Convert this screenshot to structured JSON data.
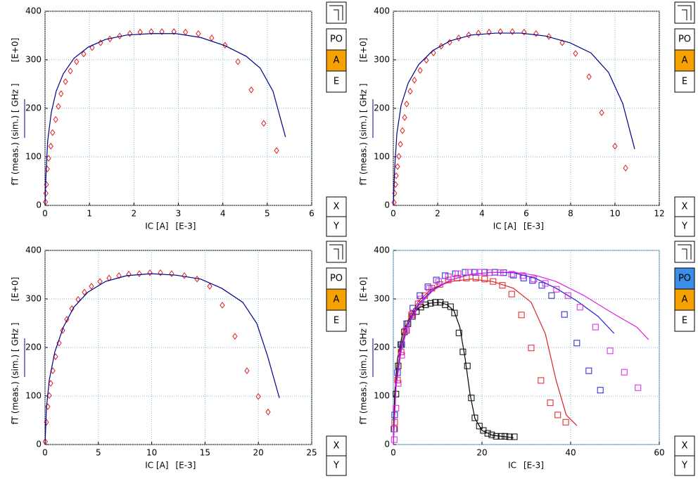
{
  "chart_data": [
    {
      "type": "scatter",
      "y_label": "fT (meas.)  (sim.) [ GHz ]",
      "y_scale_label": "[E+0]",
      "x_label": "IC [A]",
      "x_scale_label": "[E-3]",
      "xlim": [
        0,
        6
      ],
      "xticks": [
        0,
        1,
        2,
        3,
        4,
        5,
        6
      ],
      "ylim": [
        0,
        400
      ],
      "yticks": [
        0,
        100,
        200,
        300,
        400
      ],
      "grid": true,
      "series": [
        {
          "kind": "markers",
          "marker": "diamond",
          "color": "#e02020",
          "x": [
            0.01,
            0.02,
            0.03,
            0.05,
            0.08,
            0.13,
            0.17,
            0.24,
            0.3,
            0.36,
            0.46,
            0.57,
            0.71,
            0.87,
            1.06,
            1.25,
            1.46,
            1.68,
            1.91,
            2.14,
            2.39,
            2.63,
            2.9,
            3.16,
            3.45,
            3.75,
            4.05,
            4.34,
            4.64,
            4.92,
            5.21
          ],
          "values": [
            7,
            25,
            43,
            75,
            97,
            122,
            150,
            177,
            204,
            230,
            255,
            277,
            296,
            312,
            325,
            335,
            343,
            349,
            354,
            357,
            358,
            358,
            358,
            357,
            354,
            345,
            330,
            296,
            238,
            169,
            113
          ]
        },
        {
          "kind": "line",
          "color": "#00008b",
          "x": [
            0,
            0.02,
            0.06,
            0.14,
            0.25,
            0.41,
            0.65,
            0.97,
            1.36,
            1.84,
            2.39,
            2.94,
            3.5,
            4.05,
            4.53,
            4.84,
            5.13,
            5.41
          ],
          "values": [
            0,
            60,
            133,
            191,
            235,
            271,
            303,
            326,
            342,
            351,
            354,
            354,
            346,
            329,
            307,
            283,
            235,
            141
          ]
        }
      ]
    },
    {
      "type": "scatter",
      "y_label": "fT (meas.)  (sim.) [ GHz ]",
      "y_scale_label": "[E+0]",
      "x_label": "IC [A]",
      "x_scale_label": "[E-3]",
      "xlim": [
        0,
        12
      ],
      "xticks": [
        0,
        2,
        4,
        6,
        8,
        10,
        12
      ],
      "ylim": [
        0,
        400
      ],
      "yticks": [
        0,
        100,
        200,
        300,
        400
      ],
      "grid": true,
      "series": [
        {
          "kind": "markers",
          "marker": "diamond",
          "color": "#e02020",
          "x": [
            0.03,
            0.06,
            0.1,
            0.13,
            0.19,
            0.25,
            0.32,
            0.41,
            0.51,
            0.6,
            0.76,
            0.95,
            1.21,
            1.49,
            1.81,
            2.16,
            2.54,
            2.95,
            3.4,
            3.84,
            4.32,
            4.83,
            5.37,
            5.9,
            6.44,
            7.02,
            7.62,
            8.22,
            8.83,
            9.4,
            10.0,
            10.48
          ],
          "values": [
            6,
            25,
            43,
            61,
            80,
            101,
            126,
            154,
            181,
            209,
            235,
            258,
            278,
            299,
            314,
            328,
            336,
            345,
            351,
            355,
            357,
            358,
            358,
            357,
            354,
            348,
            335,
            313,
            265,
            191,
            122,
            77
          ]
        },
        {
          "kind": "line",
          "color": "#00008b",
          "x": [
            0,
            0.06,
            0.16,
            0.35,
            0.67,
            1.14,
            1.78,
            2.57,
            3.52,
            4.63,
            5.75,
            6.86,
            7.97,
            8.92,
            9.71,
            10.35,
            10.89
          ],
          "values": [
            0,
            75,
            148,
            206,
            252,
            290,
            319,
            339,
            351,
            355,
            355,
            349,
            335,
            314,
            274,
            210,
            116
          ]
        }
      ]
    },
    {
      "type": "scatter",
      "y_label": "fT (meas.)  (sim.) [ GHz ]",
      "y_scale_label": "[E+0]",
      "x_label": "IC [A]",
      "x_scale_label": "[E-3]",
      "xlim": [
        0,
        25
      ],
      "xticks": [
        0,
        5,
        10,
        15,
        20,
        25
      ],
      "ylim": [
        0,
        400
      ],
      "yticks": [
        0,
        100,
        200,
        300,
        400
      ],
      "grid": true,
      "series": [
        {
          "kind": "markers",
          "marker": "diamond",
          "color": "#e02020",
          "x": [
            0.02,
            0.13,
            0.26,
            0.4,
            0.53,
            0.73,
            0.99,
            1.32,
            1.65,
            2.04,
            2.51,
            3.1,
            3.69,
            4.35,
            5.15,
            6.0,
            6.93,
            7.85,
            8.84,
            9.83,
            10.82,
            11.87,
            13.06,
            14.25,
            15.44,
            16.62,
            17.8,
            18.93,
            19.99,
            20.91
          ],
          "values": [
            6,
            46,
            78,
            101,
            126,
            152,
            181,
            209,
            235,
            258,
            280,
            299,
            314,
            326,
            336,
            343,
            348,
            351,
            352,
            354,
            354,
            352,
            348,
            341,
            326,
            287,
            223,
            152,
            99,
            67
          ]
        },
        {
          "kind": "line",
          "color": "#00008b",
          "x": [
            0,
            0.13,
            0.4,
            0.92,
            1.72,
            2.7,
            4.02,
            5.67,
            7.65,
            9.96,
            12.27,
            14.58,
            16.56,
            18.54,
            19.86,
            20.84,
            21.97
          ],
          "values": [
            0,
            75,
            133,
            191,
            242,
            283,
            314,
            336,
            348,
            352,
            349,
            341,
            322,
            293,
            249,
            184,
            96
          ]
        }
      ]
    },
    {
      "type": "scatter",
      "y_label": "fT (meas.)  (sim.) [ GHz ]",
      "y_scale_label": "[E+0]",
      "x_label": "IC",
      "x_scale_label": "[E-3]",
      "xlim": [
        0,
        60
      ],
      "xticks": [
        0,
        20,
        40,
        60
      ],
      "ylim": [
        0,
        400
      ],
      "yticks": [
        0,
        100,
        200,
        300,
        400
      ],
      "grid": true,
      "series": [
        {
          "kind": "markers",
          "marker": "square",
          "color": "#000000",
          "x": [
            0.16,
            0.6,
            1.1,
            1.7,
            2.5,
            3.3,
            4.3,
            5.2,
            6.2,
            7.3,
            8.4,
            9.5,
            10.6,
            11.7,
            12.9,
            13.8,
            14.8,
            15.7,
            16.7,
            17.6,
            18.4,
            19.4,
            20.3,
            21.3,
            22.2,
            23.2,
            24.3,
            25.2,
            26.2,
            27.3
          ],
          "values": [
            32,
            104,
            162,
            206,
            232,
            249,
            264,
            274,
            283,
            288,
            291,
            293,
            293,
            288,
            284,
            271,
            230,
            191,
            162,
            96,
            55,
            38,
            29,
            23,
            20,
            17,
            17,
            17,
            16,
            16
          ]
        },
        {
          "kind": "line",
          "color": "#000000",
          "x": [
            0,
            0.3,
            0.95,
            2.06,
            3.65,
            5.7,
            8.1,
            10.5,
            12.2,
            13.7,
            15,
            16.2,
            17.3,
            18.4,
            20,
            22.4,
            27.1
          ],
          "values": [
            0,
            104,
            177,
            228,
            261,
            281,
            291,
            293,
            288,
            275,
            242,
            177,
            104,
            54,
            29,
            19,
            14
          ]
        },
        {
          "kind": "markers",
          "marker": "square",
          "color": "#e02020",
          "x": [
            0.3,
            0.95,
            1.75,
            2.86,
            4.1,
            5.6,
            7.1,
            8.7,
            10.5,
            12.4,
            14.4,
            16.5,
            18.6,
            20.6,
            22.5,
            24.6,
            26.7,
            28.9,
            31.1,
            33.3,
            35.4,
            37.1,
            38.9
          ],
          "values": [
            46,
            133,
            191,
            235,
            267,
            290,
            307,
            322,
            330,
            339,
            343,
            343,
            343,
            341,
            336,
            328,
            310,
            267,
            199,
            132,
            86,
            61,
            46
          ]
        },
        {
          "kind": "line",
          "color": "#e02020",
          "x": [
            0,
            0.63,
            1.75,
            3.33,
            5.7,
            8.9,
            12.9,
            17.6,
            22.4,
            27.1,
            31.1,
            34.3,
            36.7,
            39,
            41.4
          ],
          "values": [
            0,
            133,
            206,
            257,
            296,
            322,
            336,
            341,
            336,
            322,
            293,
            228,
            133,
            61,
            39
          ]
        },
        {
          "kind": "markers",
          "marker": "square",
          "color": "#2020d0",
          "x": [
            0.3,
            0.95,
            1.9,
            3,
            4.4,
            6,
            7.8,
            9.7,
            11.7,
            14,
            16.2,
            18.4,
            20.6,
            22.9,
            24.9,
            27.1,
            29.4,
            31.4,
            33.5,
            35.7,
            38.6,
            41.4,
            44.1,
            46.7
          ],
          "values": [
            61,
            148,
            206,
            249,
            281,
            307,
            325,
            339,
            348,
            352,
            355,
            355,
            355,
            355,
            354,
            349,
            343,
            338,
            328,
            307,
            268,
            209,
            152,
            112
          ]
        },
        {
          "kind": "line",
          "color": "#2020d0",
          "x": [
            0,
            0.63,
            1.75,
            3.33,
            5.7,
            8.9,
            12.9,
            17.6,
            22.4,
            27.1,
            31.9,
            36.7,
            41.4,
            46.2,
            49.8
          ],
          "values": [
            0,
            126,
            199,
            249,
            290,
            319,
            339,
            351,
            355,
            354,
            343,
            322,
            296,
            264,
            229
          ]
        },
        {
          "kind": "markers",
          "marker": "square",
          "color": "#e020e0",
          "x": [
            0.2,
            0.3,
            0.6,
            1.1,
            1.9,
            3,
            4.4,
            6.2,
            8.1,
            10.2,
            12.4,
            14.6,
            17,
            19.4,
            21.7,
            24.1,
            26.7,
            29.2,
            31.7,
            34.3,
            36.8,
            39.4,
            42.1,
            45.6,
            48.9,
            52.1,
            55.2
          ],
          "values": [
            10,
            32,
            75,
            126,
            184,
            235,
            271,
            300,
            322,
            336,
            346,
            352,
            355,
            355,
            354,
            354,
            351,
            348,
            341,
            332,
            320,
            307,
            283,
            242,
            193,
            149,
            117
          ]
        },
        {
          "kind": "line",
          "color": "#e020e0",
          "x": [
            0,
            0.63,
            1.75,
            3.33,
            5.7,
            8.9,
            12.9,
            17.6,
            22.4,
            27.1,
            31.9,
            36.7,
            43,
            49.4,
            54.9,
            57.6
          ],
          "values": [
            0,
            119,
            191,
            246,
            286,
            317,
            339,
            351,
            355,
            355,
            349,
            336,
            307,
            271,
            242,
            216
          ]
        }
      ]
    }
  ],
  "panels": [
    {
      "buttons": [
        "PO",
        "A",
        "E"
      ],
      "selected": [
        1
      ],
      "axis_buttons": [
        "X",
        "Y"
      ]
    },
    {
      "buttons": [
        "PO",
        "A",
        "E"
      ],
      "selected": [
        1
      ],
      "axis_buttons": [
        "X",
        "Y"
      ]
    },
    {
      "buttons": [
        "PO",
        "A",
        "E"
      ],
      "selected": [
        1
      ],
      "axis_buttons": [
        "X",
        "Y"
      ]
    },
    {
      "buttons": [
        "PO",
        "A",
        "E"
      ],
      "selected": [
        0,
        1
      ],
      "axis_buttons": [
        "X",
        "Y"
      ]
    }
  ]
}
